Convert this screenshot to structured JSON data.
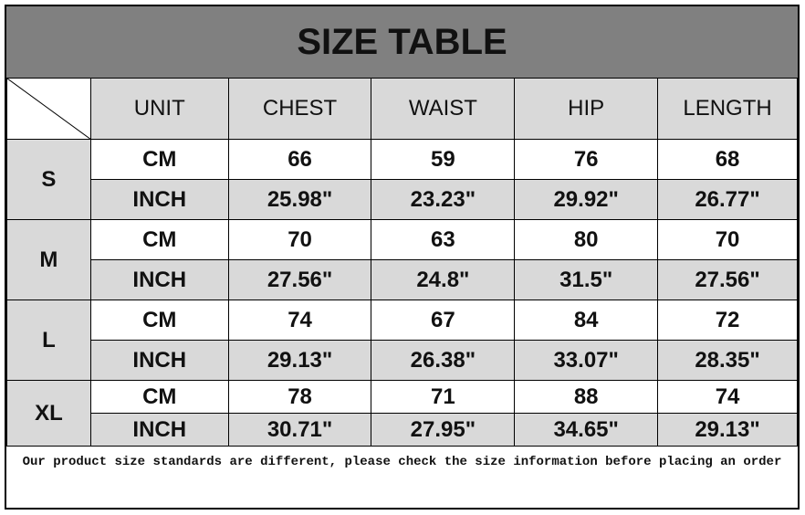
{
  "title": "SIZE TABLE",
  "headers": [
    "UNIT",
    "CHEST",
    "WAIST",
    "HIP",
    "LENGTH"
  ],
  "sizes": [
    {
      "size": "S",
      "rows": [
        [
          "CM",
          "66",
          "59",
          "76",
          "68"
        ],
        [
          "INCH",
          "25.98\"",
          "23.23\"",
          "29.92\"",
          "26.77\""
        ]
      ]
    },
    {
      "size": "M",
      "rows": [
        [
          "CM",
          "70",
          "63",
          "80",
          "70"
        ],
        [
          "INCH",
          "27.56\"",
          "24.8\"",
          "31.5\"",
          "27.56\""
        ]
      ]
    },
    {
      "size": "L",
      "rows": [
        [
          "CM",
          "74",
          "67",
          "84",
          "72"
        ],
        [
          "INCH",
          "29.13\"",
          "26.38\"",
          "33.07\"",
          "28.35\""
        ]
      ]
    },
    {
      "size": "XL",
      "rows": [
        [
          "CM",
          "78",
          "71",
          "88",
          "74"
        ],
        [
          "INCH",
          "30.71\"",
          "27.95\"",
          "34.65\"",
          "29.13\""
        ]
      ]
    }
  ],
  "note": "Our product size standards are different, please check the size information before placing an order",
  "colors": {
    "title_bg": "#808080",
    "header_bg": "#d9d9d9",
    "inch_row_bg": "#d9d9d9"
  }
}
